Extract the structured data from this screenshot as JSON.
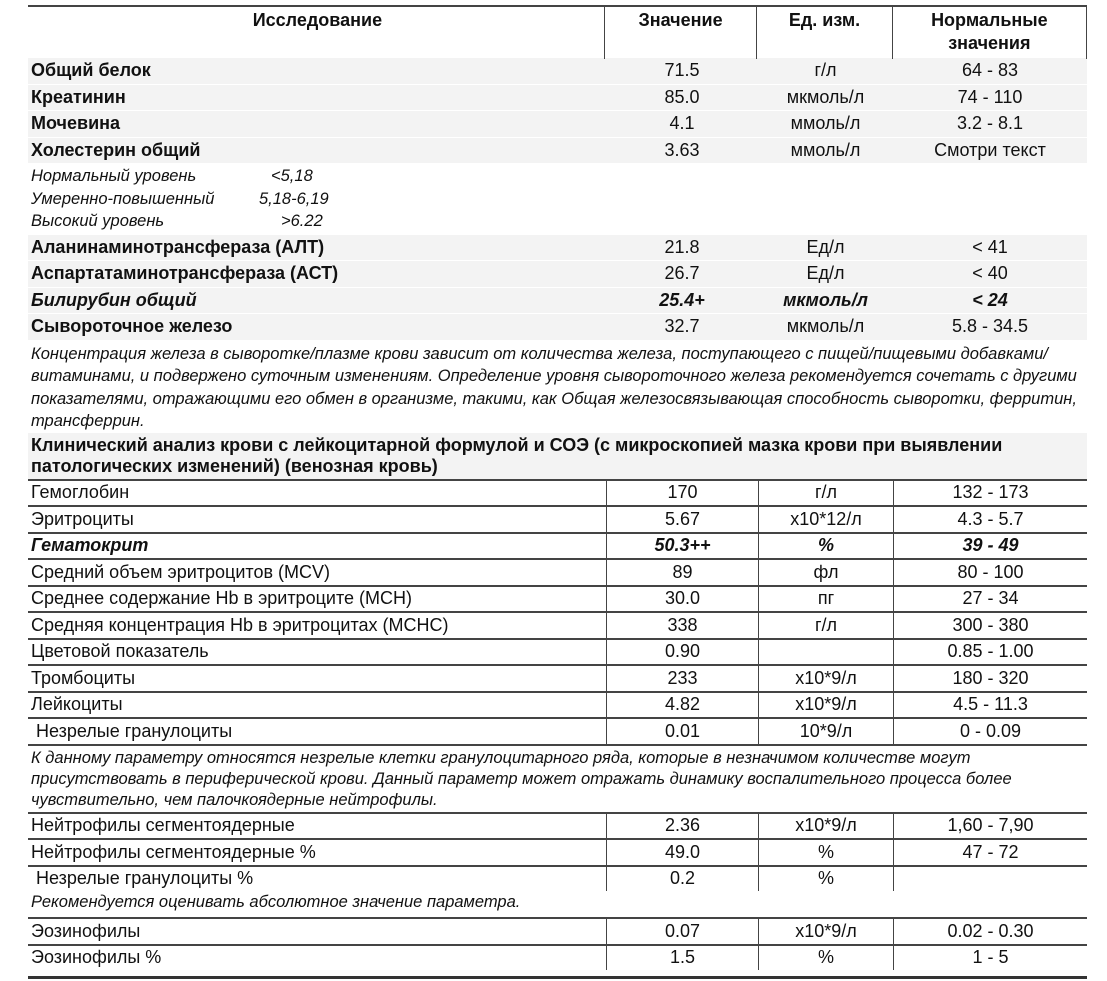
{
  "header": {
    "col1": "Исследование",
    "col2": "Значение",
    "col3": "Ед. изм.",
    "col4": "Нормальные значения"
  },
  "biochem": [
    {
      "name": "Общий белок",
      "value": "71.5",
      "unit": "г/л",
      "norm": "64 - 83"
    },
    {
      "name": "Креатинин",
      "value": "85.0",
      "unit": "мкмоль/л",
      "norm": "74 - 110"
    },
    {
      "name": "Мочевина",
      "value": "4.1",
      "unit": "ммоль/л",
      "norm": "3.2 - 8.1"
    },
    {
      "name": "Холестерин общий",
      "value": "3.63",
      "unit": "ммоль/л",
      "norm": "Смотри текст"
    }
  ],
  "cholesterol_levels": [
    {
      "label": "Нормальный уровень",
      "value": "<5,18"
    },
    {
      "label": "Умеренно-повышенный",
      "value": "5,18-6,19"
    },
    {
      "label": "Высокий уровень",
      "value": ">6.22"
    }
  ],
  "biochem2": [
    {
      "name": "Аланинаминотрансфераза (АЛТ)",
      "value": "21.8",
      "unit": "Ед/л",
      "norm": "< 41"
    },
    {
      "name": "Аспартатаминотрансфераза (АСТ)",
      "value": "26.7",
      "unit": "Ед/л",
      "norm": "< 40"
    },
    {
      "name": "Билирубин общий",
      "value": "25.4+",
      "unit": "мкмоль/л",
      "norm": "< 24",
      "flag": true
    },
    {
      "name": "Сывороточное железо",
      "value": "32.7",
      "unit": "мкмоль/л",
      "norm": "5.8 - 34.5"
    }
  ],
  "iron_note": "Концентрация железа в сыворотке/плазме крови зависит от количества железа, поступающего с пищей/пищевыми добавками/витаминами, и подвержено суточным изменениям. Определение уровня сывороточного железа рекомендуется сочетать с другими показателями, отражающими его обмен в организме, такими, как Общая железосвязывающая способность сыворотки, ферритин, трансферрин.",
  "cbc_title": "Клинический анализ крови с лейкоцитарной формулой и СОЭ (с микроскопией мазка крови при выявлении патологических изменений) (венозная кровь)",
  "cbc": [
    {
      "name": "Гемоглобин",
      "value": "170",
      "unit": "г/л",
      "norm": "132 - 173"
    },
    {
      "name": "Эритроциты",
      "value": "5.67",
      "unit": "x10*12/л",
      "norm": "4.3 - 5.7"
    },
    {
      "name": "Гематокрит",
      "value": "50.3++",
      "unit": "%",
      "norm": "39 - 49",
      "flag": true
    },
    {
      "name": "Средний объем эритроцитов (MCV)",
      "value": "89",
      "unit": "фл",
      "norm": "80 - 100"
    },
    {
      "name": "Среднее содержание Hb в эритроците (MCH)",
      "value": "30.0",
      "unit": "пг",
      "norm": "27 - 34"
    },
    {
      "name": "Средняя концентрация Hb в эритроцитах (MCHC)",
      "value": "338",
      "unit": "г/л",
      "norm": "300 - 380"
    },
    {
      "name": "Цветовой показатель",
      "value": "0.90",
      "unit": "",
      "norm": "0.85 - 1.00"
    },
    {
      "name": "Тромбоциты",
      "value": "233",
      "unit": "x10*9/л",
      "norm": "180 - 320"
    },
    {
      "name": "Лейкоциты",
      "value": "4.82",
      "unit": "x10*9/л",
      "norm": "4.5 - 11.3"
    },
    {
      "name": "Незрелые гранулоциты",
      "value": "0.01",
      "unit": "10*9/л",
      "norm": "0 - 0.09",
      "indent": true
    }
  ],
  "ig_note": "К данному параметру относятся незрелые клетки гранулоцитарного ряда, которые  в незначимом количестве могут присутствовать в периферической крови. Данный параметр может отражать динамику воспалительного процесса более чувствительно, чем палочкоядерные нейтрофилы.",
  "cbc2": [
    {
      "name": "Нейтрофилы сегментоядерные",
      "value": "2.36",
      "unit": "x10*9/л",
      "norm": "1,60 - 7,90"
    },
    {
      "name": "Нейтрофилы сегментоядерные %",
      "value": "49.0",
      "unit": "%",
      "norm": "47 - 72"
    },
    {
      "name": "Незрелые гранулоциты %",
      "value": "0.2",
      "unit": "%",
      "norm": "",
      "indent": true
    }
  ],
  "ig_pct_note": "Рекомендуется оценивать абсолютное значение параметра.",
  "cbc3": [
    {
      "name": "Эозинофилы",
      "value": "0.07",
      "unit": "x10*9/л",
      "norm": "0.02 - 0.30"
    },
    {
      "name": "Эозинофилы %",
      "value": "1.5",
      "unit": "%",
      "norm": "1 - 5"
    }
  ]
}
